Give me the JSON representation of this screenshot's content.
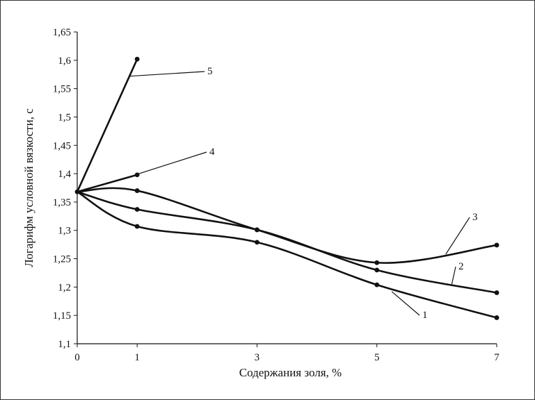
{
  "chart_data": {
    "type": "line",
    "xlabel": "Содержания золя, %",
    "ylabel": "Логарифм условной вязкости, с",
    "x_ticks": [
      0,
      1,
      3,
      5,
      7
    ],
    "x_tick_labels": [
      "0",
      "1",
      "3",
      "5",
      "7"
    ],
    "ylim": [
      1.1,
      1.65
    ],
    "y_ticks": [
      1.1,
      1.15,
      1.2,
      1.25,
      1.3,
      1.35,
      1.4,
      1.45,
      1.5,
      1.55,
      1.6,
      1.65
    ],
    "y_tick_labels": [
      "1,1",
      "1,15",
      "1,2",
      "1,25",
      "1,3",
      "1,35",
      "1,4",
      "1,45",
      "1,5",
      "1,55",
      "1,6",
      "1,65"
    ],
    "grid": false,
    "legend": "curve labels with leader lines",
    "series": [
      {
        "name": "1",
        "x": [
          0,
          1,
          3,
          5,
          7
        ],
        "y": [
          1.368,
          1.307,
          1.279,
          1.204,
          1.146
        ]
      },
      {
        "name": "2",
        "x": [
          0,
          1,
          3,
          5,
          7
        ],
        "y": [
          1.368,
          1.337,
          1.301,
          1.23,
          1.19
        ]
      },
      {
        "name": "3",
        "x": [
          0,
          1,
          3,
          5,
          7
        ],
        "y": [
          1.368,
          1.37,
          1.301,
          1.243,
          1.274
        ]
      },
      {
        "name": "4",
        "x": [
          0,
          1
        ],
        "y": [
          1.368,
          1.398
        ]
      },
      {
        "name": "5",
        "x": [
          0,
          1
        ],
        "y": [
          1.368,
          1.602
        ]
      }
    ]
  }
}
